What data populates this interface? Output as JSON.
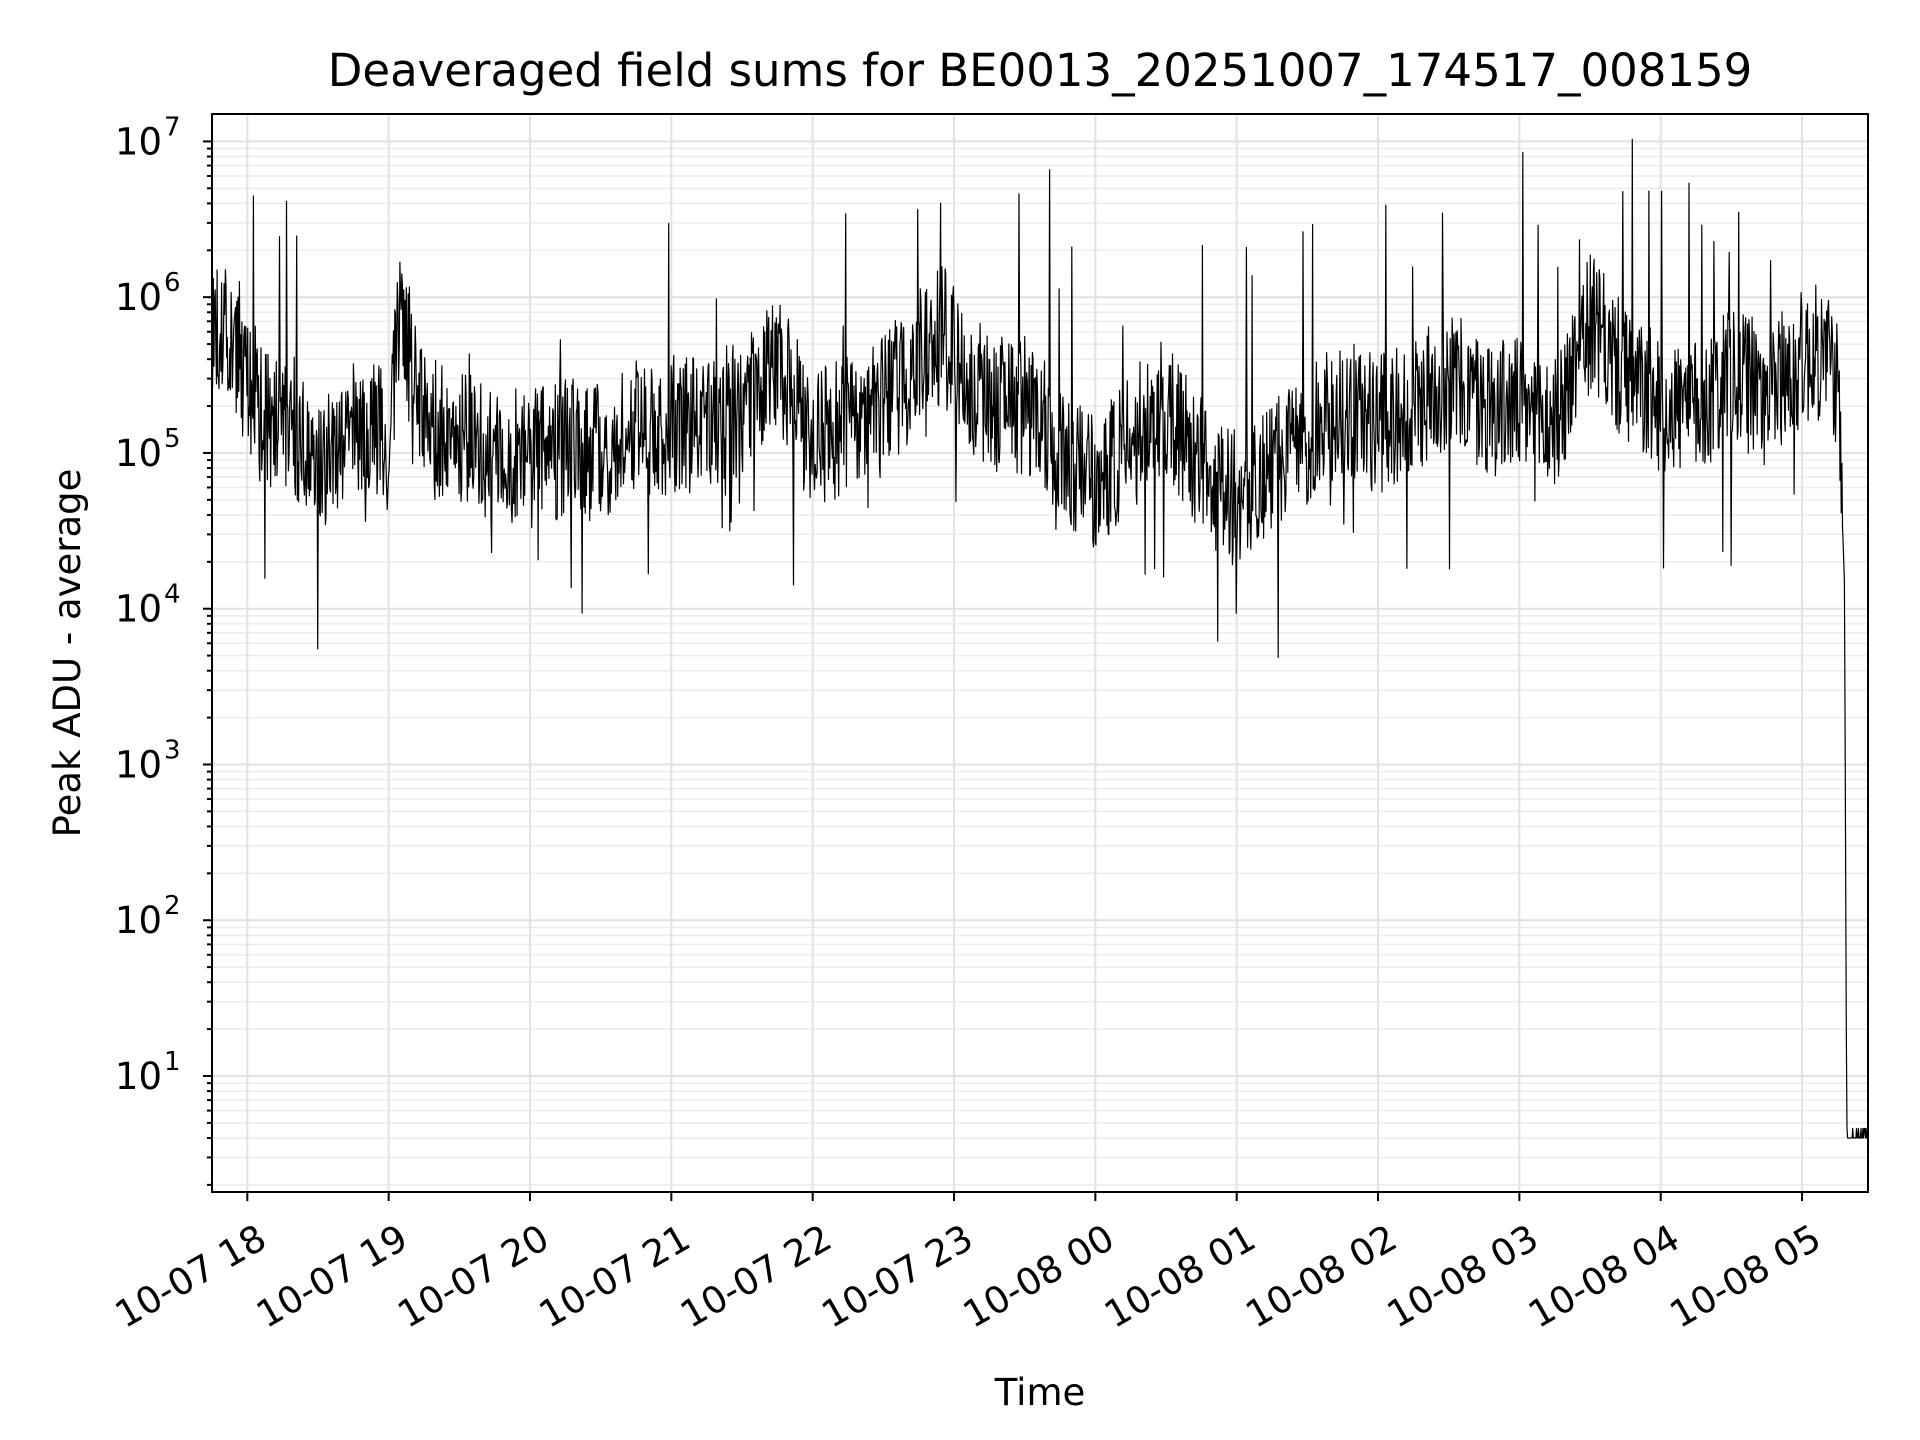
{
  "chart_data": {
    "type": "line",
    "title": "Deaveraged field sums for BE0013_20251007_174517_008159",
    "xlabel": "Time",
    "ylabel": "Peak ADU - average",
    "yscale": "log",
    "ylim": [
      1.8,
      15000000
    ],
    "xlim": [
      "2025-10-07 17:45",
      "2025-10-08 05:28"
    ],
    "grid": true,
    "x_ticks": [
      "10-07 18",
      "10-07 19",
      "10-07 20",
      "10-07 21",
      "10-07 22",
      "10-07 23",
      "10-08 00",
      "10-08 01",
      "10-08 02",
      "10-08 03",
      "10-08 04",
      "10-08 05"
    ],
    "y_ticks": [
      {
        "base": "10",
        "exp": "1",
        "value": 10
      },
      {
        "base": "10",
        "exp": "2",
        "value": 100
      },
      {
        "base": "10",
        "exp": "3",
        "value": 1000
      },
      {
        "base": "10",
        "exp": "4",
        "value": 10000
      },
      {
        "base": "10",
        "exp": "5",
        "value": 100000
      },
      {
        "base": "10",
        "exp": "6",
        "value": 1000000
      },
      {
        "base": "10",
        "exp": "7",
        "value": 10000000
      }
    ],
    "series": [
      {
        "color": "#000000",
        "points": [
          [
            "2025-10-07 17:45",
            500000
          ],
          [
            "2025-10-07 17:50",
            600000
          ],
          [
            "2025-10-07 18:00",
            300000
          ],
          [
            "2025-10-07 18:10",
            150000
          ],
          [
            "2025-10-07 18:20",
            150000
          ],
          [
            "2025-10-07 18:30",
            80000
          ],
          [
            "2025-10-07 18:40",
            120000
          ],
          [
            "2025-10-07 18:50",
            150000
          ],
          [
            "2025-10-07 19:00",
            120000
          ],
          [
            "2025-10-07 19:05",
            800000
          ],
          [
            "2025-10-07 19:15",
            150000
          ],
          [
            "2025-10-07 19:30",
            120000
          ],
          [
            "2025-10-07 19:45",
            100000
          ],
          [
            "2025-10-07 20:00",
            90000
          ],
          [
            "2025-10-07 20:15",
            110000
          ],
          [
            "2025-10-07 20:30",
            100000
          ],
          [
            "2025-10-07 20:45",
            150000
          ],
          [
            "2025-10-07 21:00",
            150000
          ],
          [
            "2025-10-07 21:15",
            160000
          ],
          [
            "2025-10-07 21:30",
            200000
          ],
          [
            "2025-10-07 21:45",
            400000
          ],
          [
            "2025-10-07 21:50",
            250000
          ],
          [
            "2025-10-07 22:00",
            120000
          ],
          [
            "2025-10-07 22:15",
            150000
          ],
          [
            "2025-10-07 22:30",
            200000
          ],
          [
            "2025-10-07 22:45",
            400000
          ],
          [
            "2025-10-07 22:55",
            600000
          ],
          [
            "2025-10-07 23:05",
            300000
          ],
          [
            "2025-10-07 23:20",
            200000
          ],
          [
            "2025-10-07 23:35",
            200000
          ],
          [
            "2025-10-07 23:50",
            80000
          ],
          [
            "2025-10-08 00:00",
            60000
          ],
          [
            "2025-10-08 00:15",
            120000
          ],
          [
            "2025-10-08 00:30",
            200000
          ],
          [
            "2025-10-08 00:45",
            80000
          ],
          [
            "2025-10-08 01:00",
            50000
          ],
          [
            "2025-10-08 01:15",
            80000
          ],
          [
            "2025-10-08 01:30",
            120000
          ],
          [
            "2025-10-08 01:45",
            200000
          ],
          [
            "2025-10-08 02:00",
            150000
          ],
          [
            "2025-10-08 02:15",
            200000
          ],
          [
            "2025-10-08 02:30",
            300000
          ],
          [
            "2025-10-08 02:45",
            200000
          ],
          [
            "2025-10-08 03:00",
            200000
          ],
          [
            "2025-10-08 03:15",
            150000
          ],
          [
            "2025-10-08 03:30",
            700000
          ],
          [
            "2025-10-08 03:45",
            300000
          ],
          [
            "2025-10-08 04:00",
            200000
          ],
          [
            "2025-10-08 04:15",
            200000
          ],
          [
            "2025-10-08 04:30",
            300000
          ],
          [
            "2025-10-08 04:45",
            250000
          ],
          [
            "2025-10-08 05:00",
            400000
          ],
          [
            "2025-10-08 05:10",
            450000
          ],
          [
            "2025-10-08 05:15",
            300000
          ],
          [
            "2025-10-08 05:18",
            15000
          ],
          [
            "2025-10-08 05:19",
            4
          ],
          [
            "2025-10-08 05:28",
            4
          ]
        ]
      }
    ]
  }
}
